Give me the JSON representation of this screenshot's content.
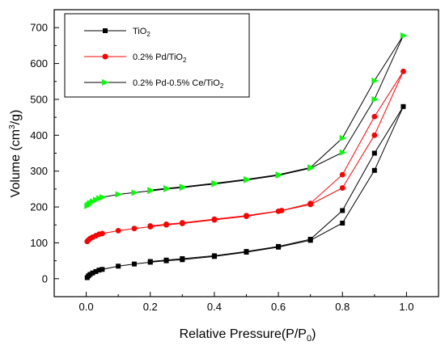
{
  "chart_data": {
    "type": "line",
    "xlabel": "Relative Pressure(P/P",
    "xlabel_sub": "0",
    "xlabel_end": ")",
    "ylabel": "Volume (cm",
    "ylabel_sup": "3",
    "ylabel_end": "/g)",
    "xlim": [
      -0.1,
      1.1
    ],
    "ylim": [
      -50,
      750
    ],
    "xticks": [
      0.0,
      0.2,
      0.4,
      0.6,
      0.8,
      1.0
    ],
    "xtick_labels": [
      "0.0",
      "0.2",
      "0.4",
      "0.6",
      "0.8",
      "1.0"
    ],
    "yticks": [
      0,
      100,
      200,
      300,
      400,
      500,
      600,
      700
    ],
    "ytick_labels": [
      "0",
      "100",
      "200",
      "300",
      "400",
      "500",
      "600",
      "700"
    ],
    "grid": false,
    "legend_position": "top-left",
    "series": [
      {
        "name": "TiO",
        "name_sub": "2",
        "name_end": "",
        "color": "#000000",
        "marker": "square",
        "adsorption": [
          [
            0.003,
            3
          ],
          [
            0.007,
            8
          ],
          [
            0.012,
            12
          ],
          [
            0.02,
            16
          ],
          [
            0.03,
            20
          ],
          [
            0.04,
            24
          ],
          [
            0.05,
            26
          ],
          [
            0.1,
            35
          ],
          [
            0.15,
            41
          ],
          [
            0.2,
            46
          ],
          [
            0.25,
            50
          ],
          [
            0.3,
            53
          ],
          [
            0.4,
            62
          ],
          [
            0.5,
            74
          ],
          [
            0.6,
            88
          ],
          [
            0.7,
            107
          ],
          [
            0.8,
            155
          ],
          [
            0.9,
            302
          ],
          [
            0.99,
            480
          ]
        ],
        "desorption": [
          [
            0.99,
            480
          ],
          [
            0.9,
            350
          ],
          [
            0.8,
            190
          ],
          [
            0.7,
            110
          ],
          [
            0.6,
            90
          ],
          [
            0.5,
            76
          ],
          [
            0.4,
            64
          ],
          [
            0.3,
            56
          ],
          [
            0.25,
            52
          ],
          [
            0.2,
            48
          ]
        ]
      },
      {
        "name": "0.2% Pd/TiO",
        "name_sub": "2",
        "name_end": "",
        "color": "#ff0000",
        "marker": "circle",
        "adsorption": [
          [
            0.003,
            104
          ],
          [
            0.007,
            108
          ],
          [
            0.012,
            112
          ],
          [
            0.02,
            116
          ],
          [
            0.03,
            120
          ],
          [
            0.04,
            124
          ],
          [
            0.05,
            126
          ],
          [
            0.1,
            134
          ],
          [
            0.15,
            140
          ],
          [
            0.2,
            145
          ],
          [
            0.25,
            150
          ],
          [
            0.3,
            154
          ],
          [
            0.4,
            164
          ],
          [
            0.5,
            174
          ],
          [
            0.6,
            188
          ],
          [
            0.7,
            207
          ],
          [
            0.8,
            253
          ],
          [
            0.9,
            400
          ],
          [
            0.99,
            578
          ]
        ],
        "desorption": [
          [
            0.99,
            578
          ],
          [
            0.9,
            452
          ],
          [
            0.8,
            290
          ],
          [
            0.7,
            210
          ],
          [
            0.61,
            190
          ],
          [
            0.5,
            176
          ],
          [
            0.4,
            166
          ],
          [
            0.3,
            156
          ],
          [
            0.25,
            152
          ],
          [
            0.2,
            147
          ]
        ]
      },
      {
        "name": "0.2% Pd-0.5% Ce/TiO",
        "name_sub": "2",
        "name_end": "",
        "color": "#00ff00",
        "marker": "triangle-right",
        "adsorption": [
          [
            0.003,
            203
          ],
          [
            0.007,
            207
          ],
          [
            0.012,
            211
          ],
          [
            0.02,
            215
          ],
          [
            0.03,
            220
          ],
          [
            0.04,
            224
          ],
          [
            0.05,
            227
          ],
          [
            0.1,
            235
          ],
          [
            0.15,
            240
          ],
          [
            0.2,
            245
          ],
          [
            0.25,
            250
          ],
          [
            0.3,
            254
          ],
          [
            0.4,
            264
          ],
          [
            0.5,
            275
          ],
          [
            0.6,
            288
          ],
          [
            0.7,
            308
          ],
          [
            0.8,
            352
          ],
          [
            0.9,
            500
          ],
          [
            0.99,
            678
          ]
        ],
        "desorption": [
          [
            0.99,
            678
          ],
          [
            0.9,
            552
          ],
          [
            0.8,
            392
          ],
          [
            0.7,
            310
          ],
          [
            0.6,
            290
          ],
          [
            0.5,
            277
          ],
          [
            0.4,
            266
          ],
          [
            0.3,
            256
          ],
          [
            0.25,
            252
          ],
          [
            0.2,
            247
          ]
        ]
      }
    ]
  }
}
